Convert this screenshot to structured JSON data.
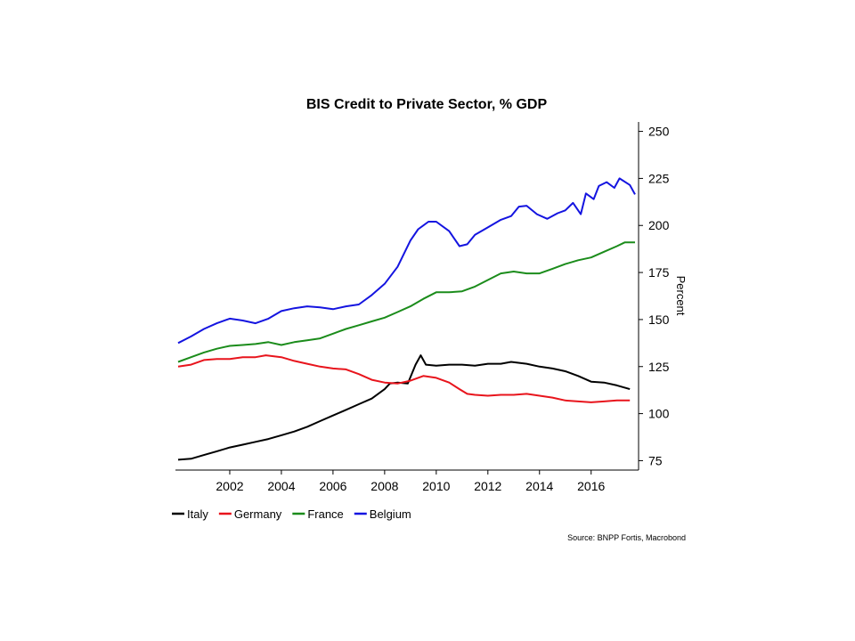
{
  "chart_data": {
    "type": "line",
    "title": "BIS Credit to Private Sector, % GDP",
    "xlabel": "",
    "ylabel": "Percent",
    "xlim": [
      2000,
      2017.7
    ],
    "ylim": [
      70,
      255
    ],
    "y_ticks": [
      75,
      100,
      125,
      150,
      175,
      200,
      225,
      250
    ],
    "x_ticks": [
      2002,
      2004,
      2006,
      2008,
      2010,
      2012,
      2014,
      2016
    ],
    "x_tick_labels": [
      "2002",
      "2004",
      "2006",
      "2008",
      "2010",
      "2012",
      "2014",
      "2016"
    ],
    "y_axis_position": "right",
    "legend_position": "bottom-left",
    "source": "Source: BNPP Fortis, Macrobond",
    "series": [
      {
        "name": "Italy",
        "color": "#000000",
        "points": [
          [
            2000,
            75.5
          ],
          [
            2000.5,
            76
          ],
          [
            2001,
            78
          ],
          [
            2001.5,
            80
          ],
          [
            2002,
            82
          ],
          [
            2002.5,
            83.5
          ],
          [
            2003,
            85
          ],
          [
            2003.5,
            86.5
          ],
          [
            2004,
            88.5
          ],
          [
            2004.5,
            90.5
          ],
          [
            2005,
            93
          ],
          [
            2005.5,
            96
          ],
          [
            2006,
            99
          ],
          [
            2006.5,
            102
          ],
          [
            2007,
            105
          ],
          [
            2007.5,
            108
          ],
          [
            2008,
            113
          ],
          [
            2008.2,
            116
          ],
          [
            2008.5,
            116.5
          ],
          [
            2008.9,
            116
          ],
          [
            2009.2,
            126
          ],
          [
            2009.4,
            131
          ],
          [
            2009.6,
            126
          ],
          [
            2010,
            125.5
          ],
          [
            2010.5,
            126
          ],
          [
            2011,
            126
          ],
          [
            2011.5,
            125.5
          ],
          [
            2012,
            126.5
          ],
          [
            2012.5,
            126.5
          ],
          [
            2012.9,
            127.5
          ],
          [
            2013.5,
            126.5
          ],
          [
            2014,
            125
          ],
          [
            2014.5,
            124
          ],
          [
            2015,
            122.5
          ],
          [
            2015.5,
            120
          ],
          [
            2016,
            117
          ],
          [
            2016.5,
            116.5
          ],
          [
            2017,
            115
          ],
          [
            2017.5,
            113
          ]
        ]
      },
      {
        "name": "Germany",
        "color": "#e8141c",
        "points": [
          [
            2000,
            125
          ],
          [
            2000.5,
            126
          ],
          [
            2001,
            128.5
          ],
          [
            2001.5,
            129
          ],
          [
            2002,
            129
          ],
          [
            2002.5,
            130
          ],
          [
            2003,
            130
          ],
          [
            2003.4,
            131
          ],
          [
            2004,
            130
          ],
          [
            2004.5,
            128
          ],
          [
            2005,
            126.5
          ],
          [
            2005.5,
            125
          ],
          [
            2006,
            124
          ],
          [
            2006.5,
            123.5
          ],
          [
            2007,
            121
          ],
          [
            2007.5,
            118
          ],
          [
            2008,
            116.5
          ],
          [
            2008.5,
            116
          ],
          [
            2009,
            117.5
          ],
          [
            2009.5,
            120
          ],
          [
            2010,
            119
          ],
          [
            2010.5,
            116.5
          ],
          [
            2010.9,
            113
          ],
          [
            2011.2,
            110.5
          ],
          [
            2011.5,
            110
          ],
          [
            2012,
            109.5
          ],
          [
            2012.5,
            110
          ],
          [
            2013,
            110
          ],
          [
            2013.5,
            110.5
          ],
          [
            2014,
            109.5
          ],
          [
            2014.5,
            108.5
          ],
          [
            2015,
            107
          ],
          [
            2015.5,
            106.5
          ],
          [
            2016,
            106
          ],
          [
            2016.5,
            106.5
          ],
          [
            2017,
            107
          ],
          [
            2017.5,
            107
          ]
        ]
      },
      {
        "name": "France",
        "color": "#1b8c1b",
        "points": [
          [
            2000,
            127.5
          ],
          [
            2000.5,
            130
          ],
          [
            2001,
            132.5
          ],
          [
            2001.5,
            134.5
          ],
          [
            2002,
            136
          ],
          [
            2002.5,
            136.5
          ],
          [
            2003,
            137
          ],
          [
            2003.5,
            138
          ],
          [
            2004,
            136.5
          ],
          [
            2004.5,
            138
          ],
          [
            2005,
            139
          ],
          [
            2005.5,
            140
          ],
          [
            2006,
            142.5
          ],
          [
            2006.5,
            145
          ],
          [
            2007,
            147
          ],
          [
            2007.5,
            149
          ],
          [
            2008,
            151
          ],
          [
            2008.5,
            154
          ],
          [
            2009,
            157
          ],
          [
            2009.5,
            161
          ],
          [
            2010,
            164.5
          ],
          [
            2010.5,
            164.5
          ],
          [
            2011,
            165
          ],
          [
            2011.5,
            167.5
          ],
          [
            2012,
            171
          ],
          [
            2012.5,
            174.5
          ],
          [
            2013,
            175.5
          ],
          [
            2013.5,
            174.5
          ],
          [
            2014,
            174.5
          ],
          [
            2014.5,
            177
          ],
          [
            2015,
            179.5
          ],
          [
            2015.5,
            181.5
          ],
          [
            2016,
            183
          ],
          [
            2016.5,
            186
          ],
          [
            2017,
            189
          ],
          [
            2017.3,
            191
          ],
          [
            2017.7,
            191
          ]
        ]
      },
      {
        "name": "Belgium",
        "color": "#1414e0",
        "points": [
          [
            2000,
            137.5
          ],
          [
            2000.5,
            141
          ],
          [
            2001,
            145
          ],
          [
            2001.5,
            148
          ],
          [
            2002,
            150.5
          ],
          [
            2002.5,
            149.5
          ],
          [
            2003,
            148
          ],
          [
            2003.5,
            150.5
          ],
          [
            2004,
            154.5
          ],
          [
            2004.5,
            156
          ],
          [
            2005,
            157
          ],
          [
            2005.5,
            156.5
          ],
          [
            2006,
            155.5
          ],
          [
            2006.5,
            157
          ],
          [
            2007,
            158
          ],
          [
            2007.5,
            163
          ],
          [
            2008,
            169
          ],
          [
            2008.5,
            178
          ],
          [
            2009,
            192
          ],
          [
            2009.3,
            198
          ],
          [
            2009.7,
            202
          ],
          [
            2010,
            202
          ],
          [
            2010.5,
            197
          ],
          [
            2010.9,
            189
          ],
          [
            2011.2,
            190
          ],
          [
            2011.5,
            195
          ],
          [
            2012,
            199
          ],
          [
            2012.5,
            203
          ],
          [
            2012.9,
            205
          ],
          [
            2013.2,
            210
          ],
          [
            2013.5,
            210.5
          ],
          [
            2013.9,
            206
          ],
          [
            2014.3,
            203.5
          ],
          [
            2014.7,
            206.5
          ],
          [
            2015,
            208
          ],
          [
            2015.3,
            212
          ],
          [
            2015.6,
            206
          ],
          [
            2015.8,
            217
          ],
          [
            2016.1,
            214
          ],
          [
            2016.3,
            221
          ],
          [
            2016.6,
            223
          ],
          [
            2016.9,
            220
          ],
          [
            2017.1,
            225
          ],
          [
            2017.5,
            221.5
          ],
          [
            2017.7,
            216.5
          ]
        ]
      }
    ]
  }
}
